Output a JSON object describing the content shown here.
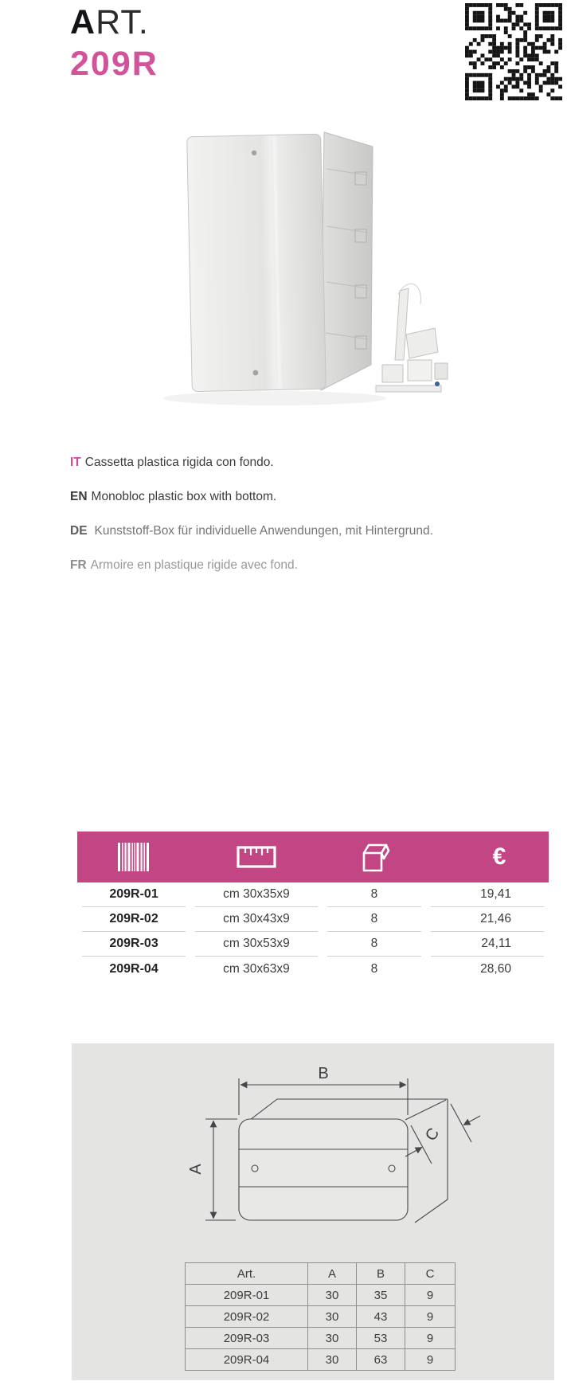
{
  "header": {
    "art_first": "A",
    "art_rest": "RT.",
    "code": "209R"
  },
  "descriptions": [
    {
      "lang": "IT",
      "text": "Cassetta plastica rigida con fondo."
    },
    {
      "lang": "EN",
      "text": "Monobloc plastic box with bottom."
    },
    {
      "lang": "DE",
      "text": "Kunststoff-Box für individuelle Anwendungen, mit Hintergrund."
    },
    {
      "lang": "FR",
      "text": "Armoire en plastique rigide avec fond."
    }
  ],
  "price_table": {
    "column_icons": [
      "barcode-icon",
      "ruler-icon",
      "package-icon",
      "euro-icon"
    ],
    "euro_symbol": "€",
    "rows": [
      {
        "code": "209R-01",
        "size": "cm 30x35x9",
        "qty": "8",
        "price": "19,41"
      },
      {
        "code": "209R-02",
        "size": "cm 30x43x9",
        "qty": "8",
        "price": "21,46"
      },
      {
        "code": "209R-03",
        "size": "cm 30x53x9",
        "qty": "8",
        "price": "24,11"
      },
      {
        "code": "209R-04",
        "size": "cm 30x63x9",
        "qty": "8",
        "price": "28,60"
      }
    ]
  },
  "diagram": {
    "labels": {
      "a": "A",
      "b": "B",
      "c": "C"
    },
    "table": {
      "headers": [
        "Art.",
        "A",
        "B",
        "C"
      ],
      "rows": [
        [
          "209R-01",
          "30",
          "35",
          "9"
        ],
        [
          "209R-02",
          "30",
          "43",
          "9"
        ],
        [
          "209R-03",
          "30",
          "53",
          "9"
        ],
        [
          "209R-04",
          "30",
          "63",
          "9"
        ]
      ]
    }
  },
  "colors": {
    "accent": "#C24683",
    "title_pink": "#D2539A",
    "panel_gray": "#E4E4E2"
  }
}
